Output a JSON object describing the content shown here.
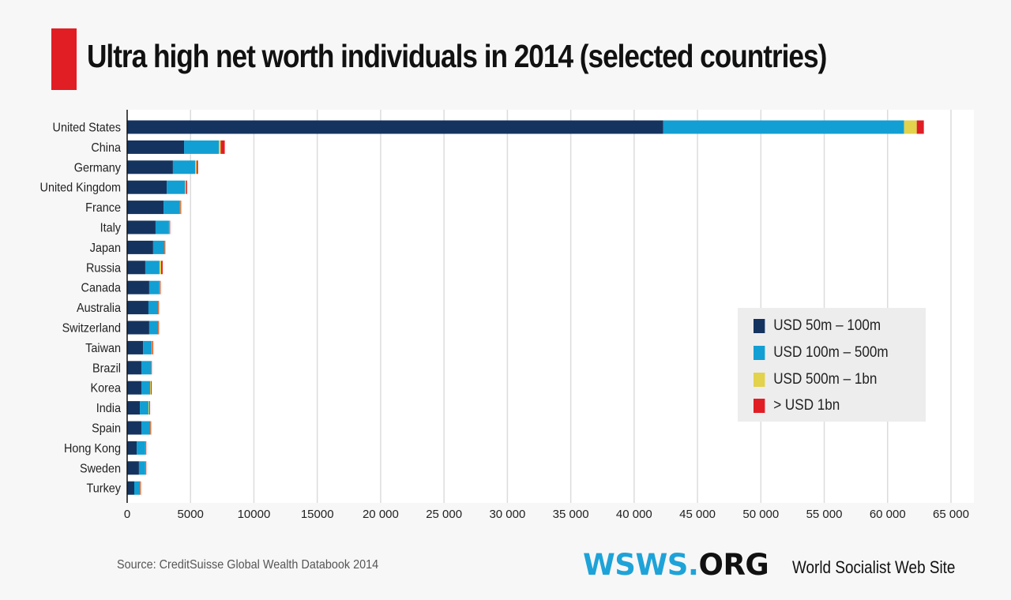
{
  "header": {
    "title": "Ultra high net worth individuals in 2014 (selected countries)"
  },
  "colors": {
    "accent_red": "#e01e24",
    "series_50_100": "#14345f",
    "series_100_500": "#129fd3",
    "series_500_1bn": "#e2d24c",
    "series_over_1bn": "#e01e24",
    "logo_blue": "#1ea3d8"
  },
  "chart_data": {
    "type": "bar",
    "orientation": "horizontal",
    "stacked": true,
    "title": "Ultra high net worth individuals in 2014 (selected countries)",
    "xlabel": "",
    "ylabel": "",
    "xlim": [
      0,
      65000
    ],
    "xticks": [
      0,
      5000,
      10000,
      15000,
      20000,
      25000,
      30000,
      35000,
      40000,
      45000,
      50000,
      55000,
      60000,
      65000
    ],
    "xtick_labels": [
      "0",
      "5000",
      "10000",
      "15000",
      "20 000",
      "25 000",
      "30 000",
      "35 000",
      "40 000",
      "45 000",
      "50 000",
      "55 000",
      "60 000",
      "65 000"
    ],
    "grid": "vertical",
    "legend_position": "center-right",
    "categories": [
      "United States",
      "China",
      "Germany",
      "United Kingdom",
      "France",
      "Italy",
      "Japan",
      "Russia",
      "Canada",
      "Australia",
      "Switzerland",
      "Taiwan",
      "Brazil",
      "Korea",
      "India",
      "Spain",
      "Hong Kong",
      "Sweden",
      "Turkey"
    ],
    "series": [
      {
        "name": "USD 50m – 100m",
        "color": "#14345f",
        "values": [
          42300,
          4490,
          3610,
          3120,
          2870,
          2240,
          2050,
          1430,
          1740,
          1680,
          1740,
          1250,
          1120,
          1120,
          1000,
          1120,
          750,
          930,
          560
        ]
      },
      {
        "name": "USD 100m – 500m",
        "color": "#129fd3",
        "values": [
          19000,
          2740,
          1750,
          1430,
          1300,
          1060,
          880,
          1120,
          810,
          750,
          690,
          680,
          750,
          690,
          680,
          690,
          680,
          500,
          440
        ]
      },
      {
        "name": "USD 500m – 1bn",
        "color": "#e2d24c",
        "values": [
          1000,
          150,
          120,
          90,
          40,
          40,
          30,
          130,
          40,
          30,
          30,
          60,
          30,
          60,
          70,
          30,
          30,
          30,
          30
        ]
      },
      {
        "name": "> USD 1bn",
        "color": "#e01e24",
        "values": [
          560,
          320,
          110,
          90,
          40,
          30,
          20,
          120,
          30,
          30,
          30,
          60,
          30,
          60,
          60,
          30,
          40,
          30,
          30
        ]
      }
    ],
    "source": "Source: CreditSuisse Global Wealth Databook 2014"
  },
  "legend": {
    "items": [
      {
        "label": "USD 50m – 100m",
        "color": "#14345f"
      },
      {
        "label": "USD 100m – 500m",
        "color": "#129fd3"
      },
      {
        "label": "USD 500m – 1bn",
        "color": "#e2d24c"
      },
      {
        "label": "> USD 1bn",
        "color": "#e01e24"
      }
    ]
  },
  "footer": {
    "source": "Source: CreditSuisse Global Wealth Databook 2014",
    "logo_blue": "WSWS.",
    "logo_black": "ORG",
    "tagline": "World Socialist Web Site"
  }
}
